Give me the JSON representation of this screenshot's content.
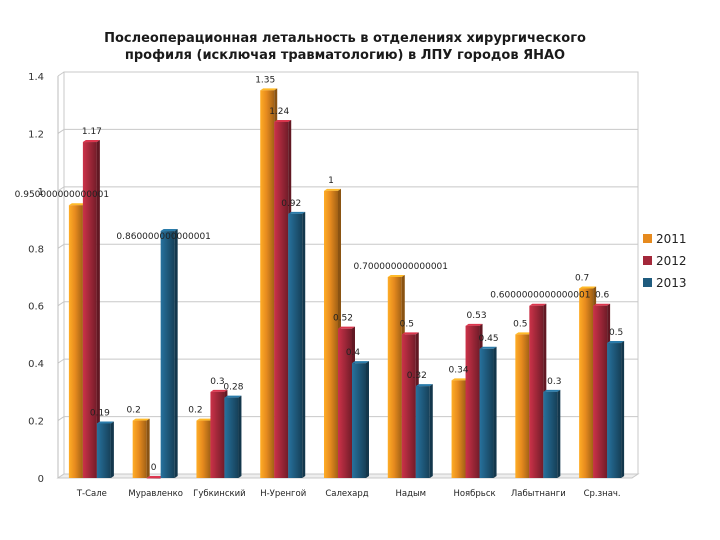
{
  "chart_data": {
    "type": "bar",
    "title": "Послеоперационная летальность в отделениях хирургического\nпрофиля (исключая травматологию) в ЛПУ городов ЯНАО",
    "categories": [
      "Т-Сале",
      "Муравленко",
      "Губкинский",
      "Н-Уренгой",
      "Салехард",
      "Надым",
      "Ноябрьск",
      "Лабытнанги",
      "Ср.знач."
    ],
    "series": [
      {
        "name": "2011",
        "color": "#E68A1E",
        "values": [
          0.95,
          0.2,
          0.2,
          1.35,
          1.0,
          0.7,
          0.34,
          0.5,
          0.66
        ]
      },
      {
        "name": "2012",
        "color": "#A3283A",
        "values": [
          1.17,
          0.0,
          0.3,
          1.24,
          0.52,
          0.5,
          0.53,
          0.6,
          0.6
        ]
      },
      {
        "name": "2013",
        "color": "#1F5B7E",
        "values": [
          0.19,
          0.86,
          0.28,
          0.92,
          0.4,
          0.32,
          0.45,
          0.3,
          0.47
        ]
      }
    ],
    "data_labels": [
      [
        "0.950000000000001",
        "1.17",
        "0.19"
      ],
      [
        "0.2",
        "0",
        "0.860000000000001"
      ],
      [
        "0.2",
        "0.3",
        "0.28"
      ],
      [
        "1.35",
        "1.24",
        "0.92"
      ],
      [
        "1",
        "0.52",
        "0.4"
      ],
      [
        "0.700000000000001",
        "0.5",
        "0.32"
      ],
      [
        "0.34",
        "0.53",
        "0.45"
      ],
      [
        "0.5",
        "0.6000000000000001",
        "0.3"
      ],
      [
        "0.7",
        "0.6",
        "0.5"
      ]
    ],
    "yticks": [
      "0",
      "0.2",
      "0.4",
      "0.6",
      "0.8",
      "1",
      "1.2",
      "1.4"
    ],
    "ylim": [
      0,
      1.4
    ],
    "grid": true,
    "legend_position": "right"
  }
}
